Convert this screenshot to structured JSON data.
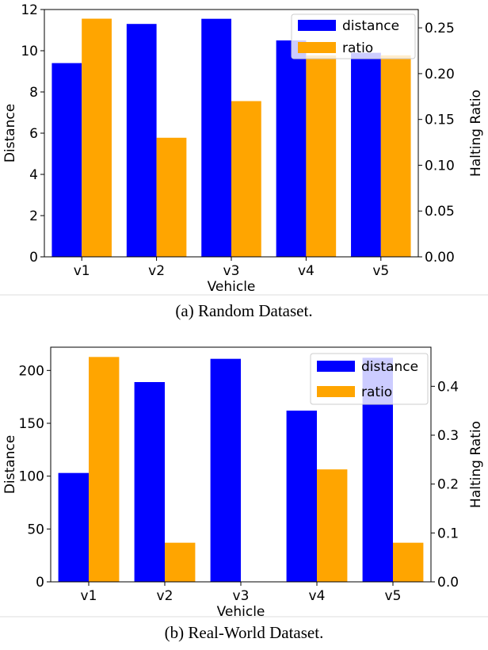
{
  "colors": {
    "distance": "#0000ff",
    "ratio": "#ffa500"
  },
  "chart_data": [
    {
      "type": "bar",
      "caption": "(a) Random Dataset.",
      "categories": [
        "v1",
        "v2",
        "v3",
        "v4",
        "v5"
      ],
      "xlabel": "Vehicle",
      "ylabel": "Distance",
      "y2label": "Halting Ratio",
      "ylim": [
        0,
        12
      ],
      "y2lim": [
        0,
        0.27
      ],
      "yticks": [
        "0",
        "2",
        "4",
        "6",
        "8",
        "10",
        "12"
      ],
      "y2ticks": [
        "0.00",
        "0.05",
        "0.10",
        "0.15",
        "0.20",
        "0.25"
      ],
      "legend_position": "top-right",
      "series": [
        {
          "name": "distance",
          "axis": "left",
          "values": [
            9.4,
            11.3,
            11.55,
            10.5,
            9.9
          ]
        },
        {
          "name": "ratio",
          "axis": "right",
          "values": [
            0.26,
            0.13,
            0.17,
            0.22,
            0.22
          ]
        }
      ]
    },
    {
      "type": "bar",
      "caption": "(b) Real-World Dataset.",
      "categories": [
        "v1",
        "v2",
        "v3",
        "v4",
        "v5"
      ],
      "xlabel": "Vehicle",
      "ylabel": "Distance",
      "y2label": "Halting Ratio",
      "ylim": [
        0,
        222
      ],
      "y2lim": [
        0,
        0.48
      ],
      "yticks": [
        "0",
        "50",
        "100",
        "150",
        "200"
      ],
      "y2ticks": [
        "0.0",
        "0.1",
        "0.2",
        "0.3",
        "0.4"
      ],
      "legend_position": "top-right",
      "series": [
        {
          "name": "distance",
          "axis": "left",
          "values": [
            103,
            189,
            211,
            162,
            212
          ]
        },
        {
          "name": "ratio",
          "axis": "right",
          "values": [
            0.46,
            0.08,
            0.0,
            0.23,
            0.08
          ]
        }
      ]
    }
  ]
}
